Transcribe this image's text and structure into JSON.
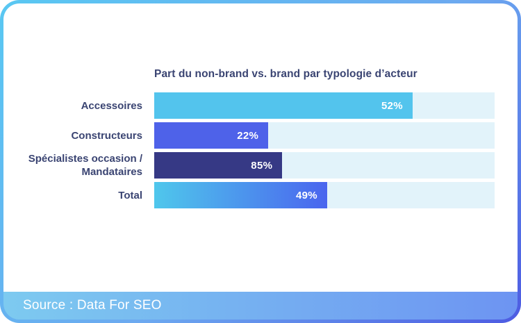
{
  "chart_data": {
    "type": "bar",
    "orientation": "horizontal",
    "title": "Part du non-brand vs. brand par typologie d’acteur",
    "categories": [
      "Accessoires",
      "Constructeurs",
      "Spécialistes occasion / Mandataires",
      "Total"
    ],
    "values": [
      52,
      22,
      85,
      49
    ],
    "value_labels": [
      "52%",
      "22%",
      "85%",
      "49%"
    ],
    "value_suffix": "%",
    "xlim": [
      0,
      100
    ],
    "grid": false,
    "legend": false,
    "track_color": "#E2F3FA",
    "bars": [
      {
        "label": "Accessoires",
        "value": 52,
        "display_width_pct": 75.9,
        "color": "#53C4ED"
      },
      {
        "label": "Constructeurs",
        "value": 22,
        "display_width_pct": 33.5,
        "color": "#4E62E9"
      },
      {
        "label": "Spécialistes occasion / Mandataires",
        "value": 85,
        "display_width_pct": 37.6,
        "color": "#363985"
      },
      {
        "label": "Total",
        "value": 49,
        "display_width_pct": 50.8,
        "color": "#4FC7EC",
        "color2": "#4A65EE"
      }
    ]
  },
  "footer": {
    "label": "Source : Data For SEO",
    "gradient": [
      "#7DCAF0",
      "#6D94F2"
    ]
  },
  "colors": {
    "frame_border_gradient": [
      "#59C8F2",
      "#4D5BE2"
    ],
    "card_background": "#FFFFFF",
    "title_text": "#3A4472",
    "category_text": "#3A4472",
    "value_text": "#FFFFFF"
  }
}
